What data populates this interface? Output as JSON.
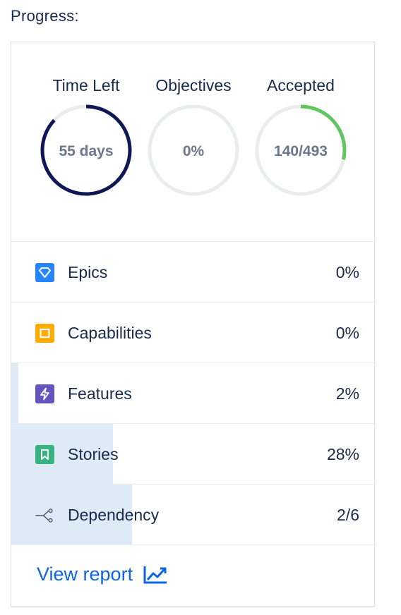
{
  "section_label": "Progress:",
  "gauges": [
    {
      "title": "Time Left",
      "value_text": "55 days",
      "fraction": 0.87,
      "color": "#0f1754"
    },
    {
      "title": "Objectives",
      "value_text": "0%",
      "fraction": 0.0,
      "color": "#0f1754"
    },
    {
      "title": "Accepted",
      "value_text": "140/493",
      "fraction": 0.284,
      "color": "#63c561"
    }
  ],
  "rows": [
    {
      "label": "Epics",
      "value": "0%",
      "fraction": 0.0,
      "icon": "epic-gem-icon",
      "icon_color": "#2684ff"
    },
    {
      "label": "Capabilities",
      "value": "0%",
      "fraction": 0.0,
      "icon": "capability-square-icon",
      "icon_color": "#ffab00"
    },
    {
      "label": "Features",
      "value": "2%",
      "fraction": 0.02,
      "icon": "feature-bolt-icon",
      "icon_color": "#6554c0"
    },
    {
      "label": "Stories",
      "value": "28%",
      "fraction": 0.28,
      "icon": "story-bookmark-icon",
      "icon_color": "#36b37e"
    },
    {
      "label": "Dependency",
      "value": "2/6",
      "fraction": 0.333,
      "icon": "dependency-branch-icon",
      "icon_color": "#44546f"
    }
  ],
  "footer": {
    "link_label": "View report",
    "icon": "trend-chart-icon",
    "link_color": "#0c66e4"
  },
  "colors": {
    "track": "#ebecf0",
    "row_fill": "#deebf7",
    "text": "#172b4d",
    "muted": "#6b778c"
  }
}
